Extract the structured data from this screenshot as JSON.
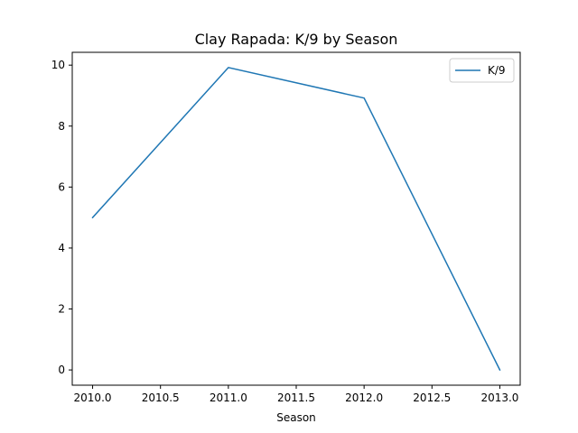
{
  "chart_data": {
    "type": "line",
    "title": "Clay Rapada: K/9 by Season",
    "xlabel": "Season",
    "ylabel": "",
    "x": [
      2010,
      2011,
      2012,
      2013
    ],
    "series": [
      {
        "name": "K/9",
        "values": [
          5.0,
          9.92,
          8.92,
          0.0
        ]
      }
    ],
    "xlim": [
      2009.85,
      2013.15
    ],
    "ylim": [
      -0.5,
      10.42
    ],
    "xticks": [
      2010.0,
      2010.5,
      2011.0,
      2011.5,
      2012.0,
      2012.5,
      2013.0
    ],
    "xtick_labels": [
      "2010.0",
      "2010.5",
      "2011.0",
      "2011.5",
      "2012.0",
      "2012.5",
      "2013.0"
    ],
    "yticks": [
      0,
      2,
      4,
      6,
      8,
      10
    ],
    "ytick_labels": [
      "0",
      "2",
      "4",
      "6",
      "8",
      "10"
    ],
    "grid": false,
    "legend_position": "top-right",
    "colors": {
      "series": "#1f77b4",
      "axis": "#000000",
      "legend_border": "#cccccc"
    }
  }
}
